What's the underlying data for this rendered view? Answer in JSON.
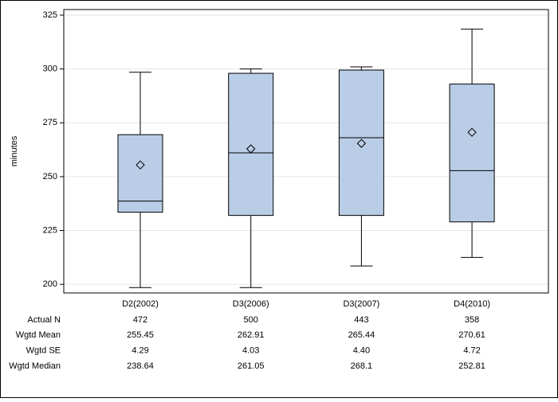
{
  "chart_data": {
    "type": "box",
    "y_label": "minutes",
    "categories": [
      "D2(2002)",
      "D3(2006)",
      "D3(2007)",
      "D4(2010)"
    ],
    "color": "#bacde6",
    "boxes": [
      {
        "min": 198.5,
        "q1": 233.5,
        "median": 238.64,
        "q3": 269.5,
        "max": 298.5,
        "mean": 255.45
      },
      {
        "min": 198.5,
        "q1": 232,
        "median": 261.05,
        "q3": 298,
        "max": 300,
        "mean": 262.91
      },
      {
        "min": 208.5,
        "q1": 232,
        "median": 268.1,
        "q3": 299.5,
        "max": 301,
        "mean": 265.44
      },
      {
        "min": 212.5,
        "q1": 229,
        "median": 252.81,
        "q3": 293,
        "max": 318.5,
        "mean": 270.61
      }
    ],
    "ylim": [
      196,
      327.6
    ],
    "yticks": [
      200,
      225,
      250,
      275,
      300,
      325
    ],
    "grid": true,
    "table": {
      "rows": [
        {
          "label": "Actual N",
          "cells": [
            "472",
            "500",
            "443",
            "358"
          ]
        },
        {
          "label": "Wgtd Mean",
          "cells": [
            "255.45",
            "262.91",
            "265.44",
            "270.61"
          ]
        },
        {
          "label": "Wgtd SE",
          "cells": [
            "4.29",
            "4.03",
            "4.40",
            "4.72"
          ]
        },
        {
          "label": "Wgtd Median",
          "cells": [
            "238.64",
            "261.05",
            "268.1",
            "252.81"
          ]
        }
      ]
    }
  }
}
